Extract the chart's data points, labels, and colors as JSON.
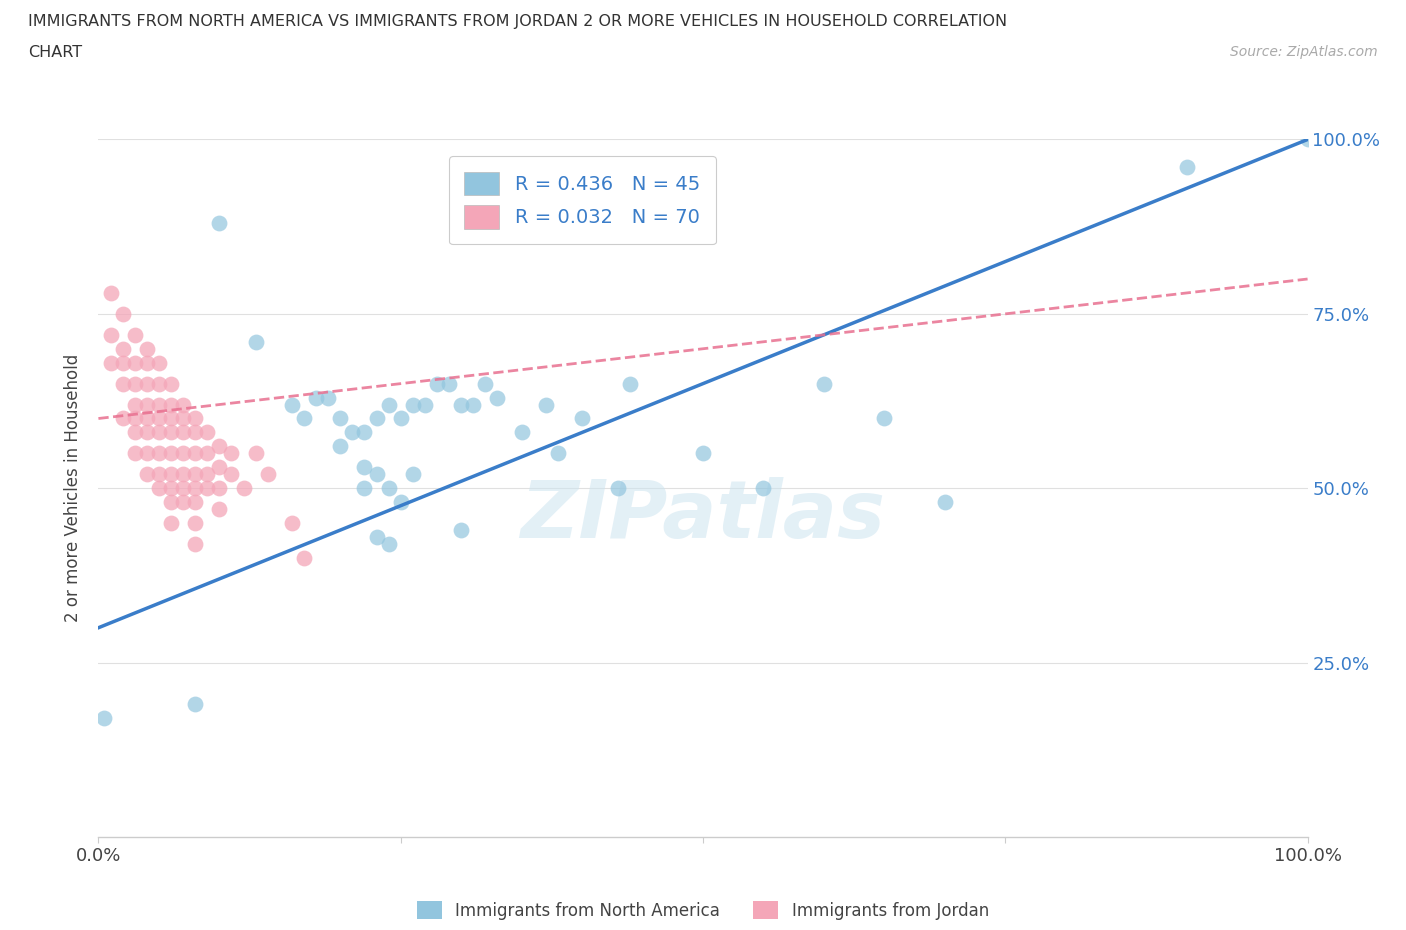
{
  "title_line1": "IMMIGRANTS FROM NORTH AMERICA VS IMMIGRANTS FROM JORDAN 2 OR MORE VEHICLES IN HOUSEHOLD CORRELATION",
  "title_line2": "CHART",
  "source": "Source: ZipAtlas.com",
  "ylabel": "2 or more Vehicles in Household",
  "xlim": [
    0.0,
    1.0
  ],
  "ylim": [
    0.0,
    1.0
  ],
  "watermark_text": "ZIPatlas",
  "legend_R1": "R = 0.436",
  "legend_N1": "N = 45",
  "legend_R2": "R = 0.032",
  "legend_N2": "N = 70",
  "color_blue": "#92c5de",
  "color_pink": "#f4a6b8",
  "line_color_blue": "#3a7dc9",
  "line_color_pink": "#e87090",
  "background_color": "#ffffff",
  "grid_color": "#e0e0e0",
  "north_america_x": [
    0.005,
    0.08,
    0.1,
    0.13,
    0.16,
    0.17,
    0.18,
    0.19,
    0.2,
    0.2,
    0.21,
    0.22,
    0.22,
    0.23,
    0.24,
    0.25,
    0.26,
    0.27,
    0.28,
    0.29,
    0.3,
    0.31,
    0.32,
    0.33,
    0.35,
    0.37,
    0.38,
    0.4,
    0.22,
    0.23,
    0.24,
    0.25,
    0.26,
    0.43,
    0.44,
    0.5,
    0.55,
    0.6,
    0.65,
    0.7,
    0.23,
    0.24,
    0.3,
    0.9,
    1.0
  ],
  "north_america_y": [
    0.17,
    0.19,
    0.88,
    0.71,
    0.62,
    0.6,
    0.63,
    0.63,
    0.6,
    0.56,
    0.58,
    0.58,
    0.53,
    0.6,
    0.62,
    0.6,
    0.62,
    0.62,
    0.65,
    0.65,
    0.62,
    0.62,
    0.65,
    0.63,
    0.58,
    0.62,
    0.55,
    0.6,
    0.5,
    0.52,
    0.5,
    0.48,
    0.52,
    0.5,
    0.65,
    0.55,
    0.5,
    0.65,
    0.6,
    0.48,
    0.43,
    0.42,
    0.44,
    0.96,
    1.0
  ],
  "jordan_x": [
    0.01,
    0.01,
    0.01,
    0.02,
    0.02,
    0.02,
    0.02,
    0.02,
    0.03,
    0.03,
    0.03,
    0.03,
    0.03,
    0.03,
    0.03,
    0.04,
    0.04,
    0.04,
    0.04,
    0.04,
    0.04,
    0.04,
    0.04,
    0.05,
    0.05,
    0.05,
    0.05,
    0.05,
    0.05,
    0.05,
    0.05,
    0.06,
    0.06,
    0.06,
    0.06,
    0.06,
    0.06,
    0.06,
    0.06,
    0.06,
    0.07,
    0.07,
    0.07,
    0.07,
    0.07,
    0.07,
    0.07,
    0.08,
    0.08,
    0.08,
    0.08,
    0.08,
    0.08,
    0.08,
    0.08,
    0.09,
    0.09,
    0.09,
    0.09,
    0.1,
    0.1,
    0.1,
    0.1,
    0.11,
    0.11,
    0.12,
    0.13,
    0.14,
    0.16,
    0.17
  ],
  "jordan_y": [
    0.78,
    0.72,
    0.68,
    0.75,
    0.7,
    0.68,
    0.65,
    0.6,
    0.72,
    0.68,
    0.65,
    0.62,
    0.6,
    0.58,
    0.55,
    0.7,
    0.68,
    0.65,
    0.62,
    0.6,
    0.58,
    0.55,
    0.52,
    0.68,
    0.65,
    0.62,
    0.6,
    0.58,
    0.55,
    0.52,
    0.5,
    0.65,
    0.62,
    0.6,
    0.58,
    0.55,
    0.52,
    0.5,
    0.48,
    0.45,
    0.62,
    0.6,
    0.58,
    0.55,
    0.52,
    0.5,
    0.48,
    0.6,
    0.58,
    0.55,
    0.52,
    0.5,
    0.48,
    0.45,
    0.42,
    0.58,
    0.55,
    0.52,
    0.5,
    0.56,
    0.53,
    0.5,
    0.47,
    0.55,
    0.52,
    0.5,
    0.55,
    0.52,
    0.45,
    0.4
  ],
  "blue_line_x": [
    0.0,
    1.0
  ],
  "blue_line_y": [
    0.3,
    1.0
  ],
  "pink_line_x": [
    0.0,
    1.0
  ],
  "pink_line_y": [
    0.6,
    0.8
  ]
}
